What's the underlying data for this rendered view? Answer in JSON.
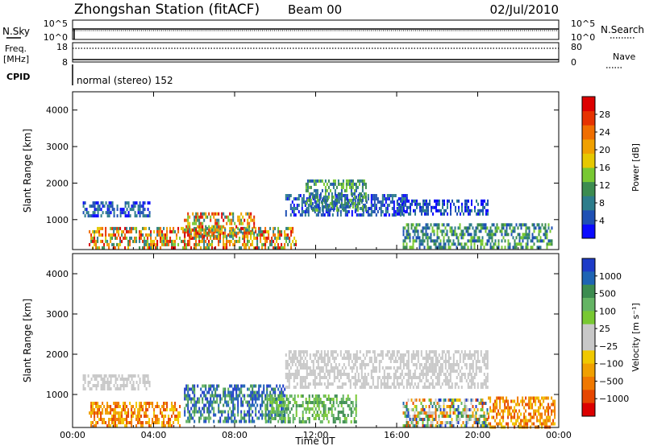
{
  "header": {
    "station_title": "Zhongshan Station (fitACF)",
    "beam": "Beam 00",
    "date": "02/Jul/2010"
  },
  "noise_panel": {
    "left_label": "N.Sky",
    "right_label": "N.Search",
    "left_ticks": [
      "10^5",
      "10^0"
    ],
    "right_ticks": [
      "10^5",
      "10^0"
    ]
  },
  "freq_panel": {
    "left_label_line1": "Freq.",
    "left_label_line2": "[MHz]",
    "right_label": "Nave",
    "left_ticks": [
      "18",
      "8"
    ],
    "right_ticks": [
      "80",
      "0"
    ]
  },
  "cpid": {
    "label": "CPID",
    "text": "normal (stereo) 152"
  },
  "chart_data": [
    {
      "type": "heatmap",
      "name": "power",
      "ylabel": "Slant Range [km]",
      "ylim": [
        180,
        4500
      ],
      "yticks": [
        "1000",
        "2000",
        "3000",
        "4000"
      ],
      "xlim": [
        0,
        24
      ],
      "xticks": [
        "00:00",
        "04:00",
        "08:00",
        "12:00",
        "16:00",
        "20:00",
        "00:00"
      ],
      "colorbar": {
        "label": "Power [dB]",
        "ticks": [
          "4",
          "8",
          "12",
          "16",
          "20",
          "24",
          "28"
        ],
        "colors": [
          "#0a0aff",
          "#1e50b4",
          "#2d7d8c",
          "#3c8c50",
          "#78c832",
          "#e6c800",
          "#f0a000",
          "#f06e00",
          "#e63200",
          "#dc0000"
        ]
      },
      "regions": [
        {
          "t0": 0.8,
          "t1": 11.0,
          "r0": 220,
          "r1": 800,
          "level": "high"
        },
        {
          "t0": 5.5,
          "t1": 9.0,
          "r0": 500,
          "r1": 1200,
          "level": "high"
        },
        {
          "t0": 0.5,
          "t1": 3.8,
          "r0": 1100,
          "r1": 1500,
          "level": "low"
        },
        {
          "t0": 10.5,
          "t1": 16.5,
          "r0": 1150,
          "r1": 1700,
          "level": "low"
        },
        {
          "t0": 11.5,
          "t1": 14.5,
          "r0": 1300,
          "r1": 2100,
          "level": "mid"
        },
        {
          "t0": 16.0,
          "t1": 20.5,
          "r0": 1150,
          "r1": 1550,
          "level": "low"
        },
        {
          "t0": 16.3,
          "t1": 23.7,
          "r0": 220,
          "r1": 900,
          "level": "mid"
        }
      ]
    },
    {
      "type": "heatmap",
      "name": "velocity",
      "ylabel": "Slant Range [km]",
      "ylim": [
        180,
        4500
      ],
      "yticks": [
        "1000",
        "2000",
        "3000",
        "4000"
      ],
      "xlim": [
        0,
        24
      ],
      "xticks": [
        "00:00",
        "04:00",
        "08:00",
        "12:00",
        "16:00",
        "20:00",
        "00:00"
      ],
      "xlabel": "Time UT",
      "colorbar": {
        "label": "Velocity [m s⁻¹]",
        "ticks": [
          "1000",
          "500",
          "100",
          "25",
          "−25",
          "−100",
          "−500",
          "−1000"
        ],
        "colors": [
          "#1e3cc8",
          "#1e64b4",
          "#3c8c50",
          "#64b464",
          "#78c832",
          "#c8c8c8",
          "#c8c8c8",
          "#f0c800",
          "#f0a000",
          "#f07800",
          "#e64600",
          "#dc0000"
        ]
      },
      "regions": [
        {
          "t0": 0.8,
          "t1": 5.3,
          "r0": 220,
          "r1": 820,
          "level": "away"
        },
        {
          "t0": 5.5,
          "t1": 10.5,
          "r0": 350,
          "r1": 1250,
          "level": "toward"
        },
        {
          "t0": 9.5,
          "t1": 14.0,
          "r0": 300,
          "r1": 1000,
          "level": "slowtoward"
        },
        {
          "t0": 0.5,
          "t1": 3.8,
          "r0": 1100,
          "r1": 1500,
          "level": "near0"
        },
        {
          "t0": 10.5,
          "t1": 20.5,
          "r0": 1150,
          "r1": 2100,
          "level": "near0"
        },
        {
          "t0": 16.3,
          "t1": 20.5,
          "r0": 220,
          "r1": 900,
          "level": "mixed"
        },
        {
          "t0": 20.5,
          "t1": 23.8,
          "r0": 220,
          "r1": 950,
          "level": "away"
        }
      ]
    }
  ]
}
